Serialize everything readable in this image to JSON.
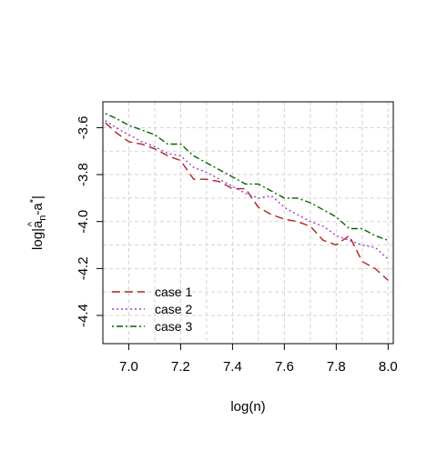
{
  "chart_data": {
    "type": "line",
    "title": "",
    "xlabel": "log(n)",
    "ylabel_parts": {
      "prefix": "log|",
      "base": "a",
      "hat": "^",
      "sub": "n",
      "mid": "-a",
      "sup": "*",
      "suffix": "|"
    },
    "xlim": [
      6.9,
      8.02
    ],
    "ylim": [
      -4.52,
      -3.49
    ],
    "xticks": [
      7.0,
      7.2,
      7.4,
      7.6,
      7.8,
      8.0
    ],
    "xtick_labels": [
      "7.0",
      "7.2",
      "7.4",
      "7.6",
      "7.8",
      "8.0"
    ],
    "yticks": [
      -3.6,
      -3.8,
      -4.0,
      -4.2,
      -4.4
    ],
    "ytick_labels": [
      "-3.6",
      "-3.8",
      "-4.0",
      "-4.2",
      "-4.4"
    ],
    "grid": true,
    "legend_position": "bottom-left",
    "x": [
      6.91,
      6.95,
      7.0,
      7.05,
      7.1,
      7.15,
      7.2,
      7.25,
      7.3,
      7.35,
      7.4,
      7.45,
      7.5,
      7.55,
      7.6,
      7.65,
      7.7,
      7.75,
      7.8,
      7.85,
      7.9,
      7.95,
      8.0
    ],
    "series": [
      {
        "name": "case 1",
        "color": "#b22222",
        "dash": "long-dash",
        "values": [
          -3.58,
          -3.62,
          -3.66,
          -3.67,
          -3.69,
          -3.72,
          -3.74,
          -3.82,
          -3.82,
          -3.83,
          -3.86,
          -3.86,
          -3.94,
          -3.97,
          -3.99,
          -4.0,
          -4.02,
          -4.08,
          -4.1,
          -4.06,
          -4.17,
          -4.2,
          -4.25
        ]
      },
      {
        "name": "case 2",
        "color": "#a040d0",
        "dash": "dotted",
        "values": [
          -3.57,
          -3.6,
          -3.63,
          -3.66,
          -3.68,
          -3.71,
          -3.72,
          -3.77,
          -3.79,
          -3.82,
          -3.85,
          -3.88,
          -3.9,
          -3.89,
          -3.94,
          -3.97,
          -4.0,
          -4.02,
          -4.06,
          -4.08,
          -4.1,
          -4.11,
          -4.16
        ]
      },
      {
        "name": "case 3",
        "color": "#006400",
        "dash": "dot-dash",
        "values": [
          -3.54,
          -3.56,
          -3.59,
          -3.61,
          -3.63,
          -3.67,
          -3.67,
          -3.72,
          -3.75,
          -3.78,
          -3.81,
          -3.84,
          -3.84,
          -3.87,
          -3.9,
          -3.9,
          -3.92,
          -3.95,
          -3.98,
          -4.03,
          -4.03,
          -4.06,
          -4.08
        ]
      }
    ]
  }
}
